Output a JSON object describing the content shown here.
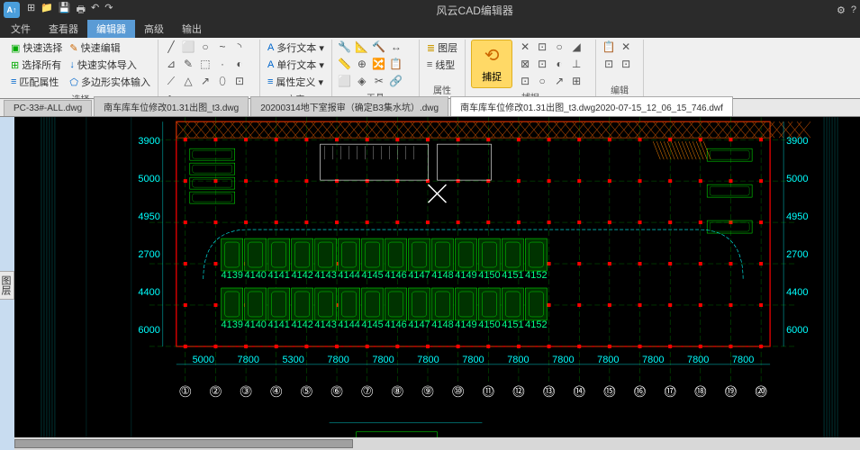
{
  "app": {
    "title": "风云CAD编辑器",
    "icon_text": "A↑"
  },
  "quick_access": [
    "⊞",
    "📁",
    "💾",
    "🖶",
    "↶",
    "↷"
  ],
  "menu": {
    "items": [
      "文件",
      "查看器",
      "编辑器",
      "高级",
      "输出"
    ],
    "active_index": 2
  },
  "ribbon": {
    "select": {
      "label": "选择",
      "items": [
        "快速选择",
        "选择所有",
        "匹配属性"
      ],
      "items2": [
        "快速编辑",
        "快速实体导入",
        "多边形实体输入"
      ]
    },
    "draw": {
      "label": "绘制",
      "icons": [
        "╱",
        "⬜",
        "○",
        "~",
        "◝",
        "⊿",
        "✎",
        "⬚",
        "·",
        "◐",
        "⟋",
        "△",
        "↗",
        "⬯",
        "⊡",
        "∿"
      ]
    },
    "text": {
      "label": "文字",
      "items": [
        "多行文本 ▾",
        "单行文本 ▾",
        "属性定义 ▾"
      ]
    },
    "tool": {
      "label": "工具",
      "icons": [
        "🔧",
        "📐",
        "🔨",
        "↔",
        "📏",
        "⊕",
        "🔀",
        "📋",
        "⬜",
        "◈",
        "✂",
        "🔗"
      ]
    },
    "props": {
      "label": "属性",
      "items": [
        "图层",
        "线型"
      ]
    },
    "capture": {
      "label": "捕捉",
      "btn": "捕捉",
      "icons": [
        "✕",
        "⊡",
        "○",
        "◢",
        "⊠",
        "⊡",
        "◐",
        "⊥",
        "⊡",
        "○",
        "↗",
        "⊞"
      ]
    },
    "edit": {
      "label": "编辑",
      "icons": [
        "📋",
        "✕",
        "⊡",
        "⊡"
      ]
    }
  },
  "tabs": {
    "items": [
      "PC-33#-ALL.dwg",
      "南车库车位修改01.31出图_t3.dwg",
      "20200314地下室报审（确定B3集水坑）.dwg",
      "南车库车位修改01.31出图_t3.dwg2020-07-15_12_06_15_746.dwf"
    ],
    "active_index": 3
  },
  "cad": {
    "bg": "#000000",
    "axis_color": "#00aa00",
    "wall_color": "#ff0000",
    "parking_color": "#00ff00",
    "parking_fill": "#003300",
    "dim_color": "#00ffff",
    "text_color": "#00ff88",
    "hatch_color": "#aa4400",
    "grid_numbers": [
      "①",
      "②",
      "③",
      "④",
      "⑤",
      "⑥",
      "⑦",
      "⑧",
      "⑨",
      "⑩",
      "⑪",
      "⑫",
      "⑬",
      "⑭",
      "⑮",
      "⑯",
      "⑰",
      "⑱",
      "⑲",
      "⑳"
    ],
    "dims_h": [
      "5000",
      "7800",
      "5300",
      "7800",
      "7800",
      "7800",
      "7800",
      "7800",
      "7800",
      "7800",
      "7800",
      "7800",
      "7800"
    ],
    "dims_v": [
      "3900",
      "5000",
      "4950",
      "2700",
      "4400",
      "6000"
    ],
    "parking_labels": [
      "4139",
      "4140",
      "4141",
      "4142",
      "4143",
      "4144",
      "4145",
      "4146",
      "4147",
      "4148",
      "4149",
      "4150",
      "4151",
      "4152"
    ]
  }
}
